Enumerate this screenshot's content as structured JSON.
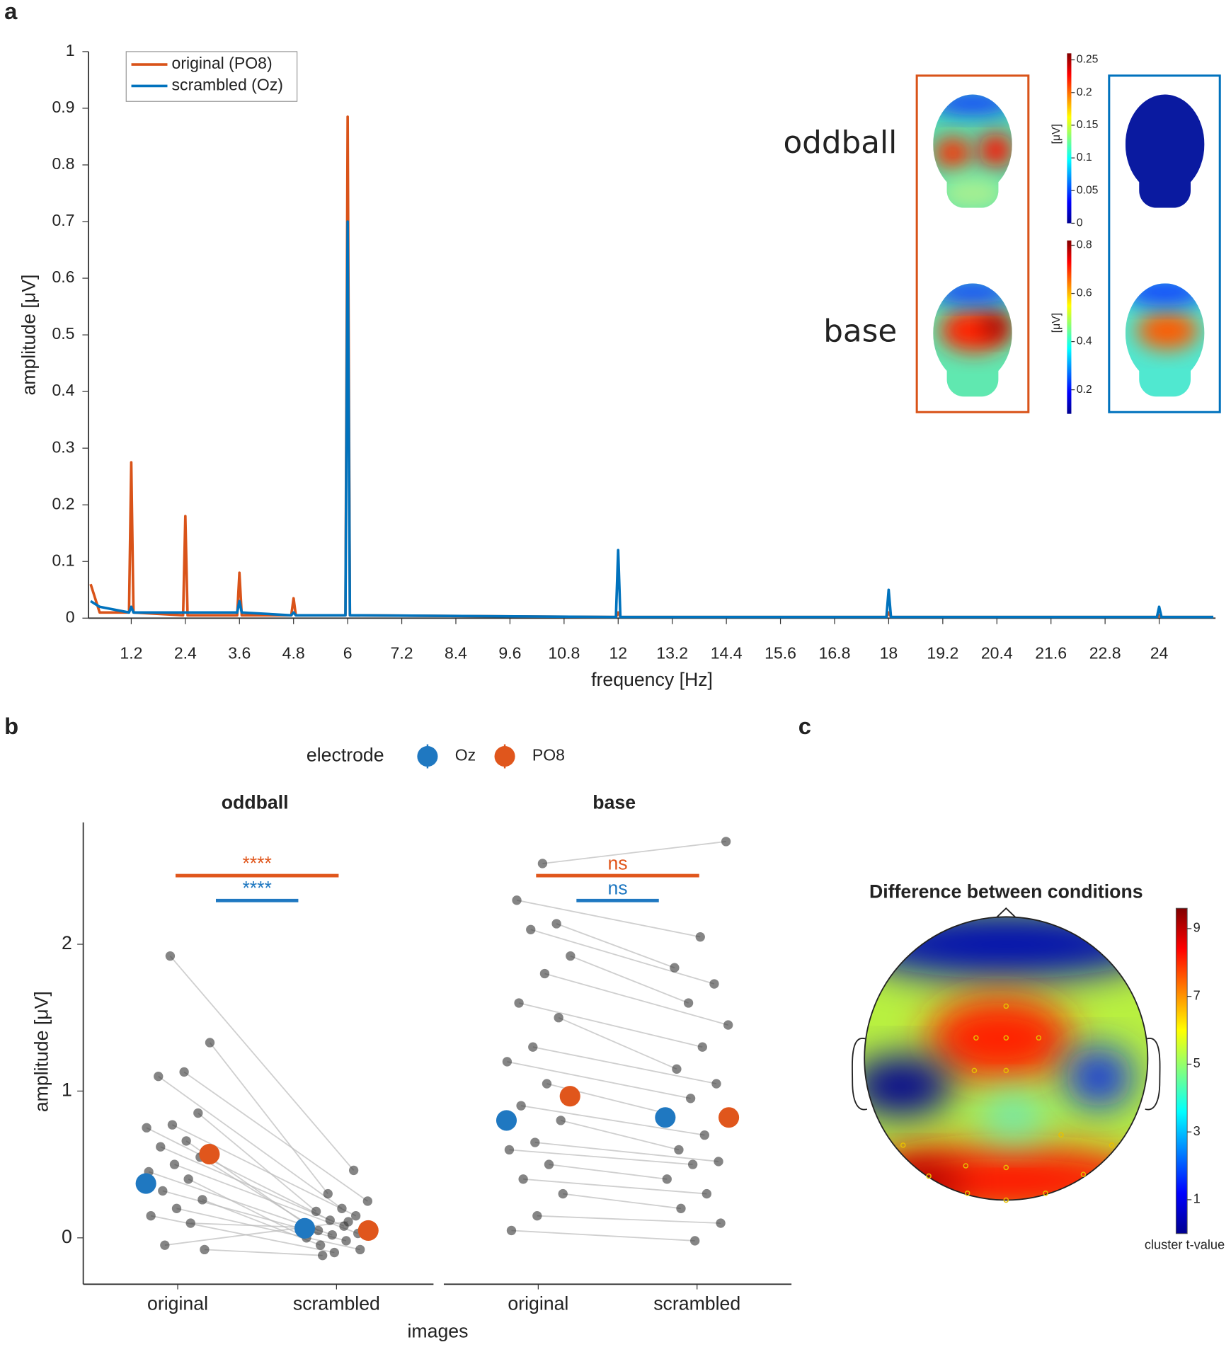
{
  "panel_labels": [
    "a",
    "b",
    "c"
  ],
  "topomaps": {
    "rows": [
      "oddball",
      "base"
    ],
    "colorbars": [
      {
        "label": "[μV]",
        "lim": [
          0,
          0.26
        ],
        "ticks": [
          0,
          0.05,
          0.1,
          0.15,
          0.2,
          0.25
        ]
      },
      {
        "label": "[μV]",
        "lim": [
          0.1,
          0.82
        ],
        "ticks": [
          0.2,
          0.4,
          0.6,
          0.8
        ]
      }
    ]
  },
  "chart_data": [
    {
      "type": "line",
      "xlabel": "frequency [Hz]",
      "ylabel": "amplitude [μV]",
      "legend": "top-left",
      "x": [
        0.3,
        0.5,
        1.15,
        1.2,
        1.25,
        2.35,
        2.4,
        2.45,
        3.55,
        3.6,
        3.65,
        4.75,
        4.8,
        4.85,
        5.95,
        6,
        6.05,
        11.95,
        12,
        12.05,
        17.95,
        18,
        18.05,
        23.95,
        24,
        24.05,
        25.2
      ],
      "series": [
        {
          "name": "original (PO8)",
          "color": "#d95319",
          "values": [
            0.06,
            0.01,
            0.01,
            0.275,
            0.01,
            0.005,
            0.18,
            0.005,
            0.005,
            0.08,
            0.005,
            0.005,
            0.035,
            0.005,
            0.005,
            0.885,
            0.005,
            0.002,
            0.01,
            0.002,
            0.002,
            0.01,
            0.002,
            0.002,
            0.005,
            0.002,
            0.002
          ]
        },
        {
          "name": "scrambled (Oz)",
          "color": "#0072bd",
          "values": [
            0.03,
            0.02,
            0.01,
            0.02,
            0.01,
            0.01,
            0.01,
            0.01,
            0.01,
            0.03,
            0.01,
            0.005,
            0.01,
            0.005,
            0.005,
            0.7,
            0.005,
            0.002,
            0.12,
            0.002,
            0.002,
            0.05,
            0.002,
            0.002,
            0.02,
            0.002,
            0.002
          ]
        }
      ],
      "xlim": [
        0.25,
        25.25
      ],
      "xticks": [
        1.2,
        2.4,
        3.6,
        4.8,
        6,
        7.2,
        8.4,
        9.6,
        10.8,
        12,
        13.2,
        14.4,
        15.6,
        16.8,
        18,
        19.2,
        20.4,
        21.6,
        22.8,
        24
      ],
      "ylim": [
        0,
        1
      ],
      "yticks": [
        0,
        0.1,
        0.2,
        0.3,
        0.4,
        0.5,
        0.6,
        0.7,
        0.8,
        0.9,
        1
      ]
    },
    {
      "type": "dot",
      "legend_title": "electrode",
      "xlabel": "images",
      "ylabel": "amplitude [μV]",
      "categories": [
        "original",
        "scrambled"
      ],
      "ylim": [
        -0.316,
        2.83
      ],
      "yticks": [
        0,
        1,
        2
      ],
      "series": [
        {
          "name": "Oz",
          "color": "#1f78c1"
        },
        {
          "name": "PO8",
          "color": "#e0561c"
        }
      ],
      "facets": [
        {
          "title": "oddball",
          "means": [
            [
              0.37,
              0.065
            ],
            [
              0.57,
              0.05
            ]
          ],
          "significance": [
            "****",
            "****"
          ],
          "subjects": [
            [
              1.92,
              1.33,
              1.13,
              1.1,
              0.85,
              0.77,
              0.75,
              0.66,
              0.62,
              0.55,
              0.5,
              0.45,
              0.4,
              0.32,
              0.26,
              0.2,
              0.15,
              0.1,
              -0.05,
              -0.08
            ],
            [
              0.46,
              0.3,
              0.25,
              0.2,
              0.18,
              0.15,
              0.12,
              0.1,
              0.08,
              0.05,
              0.03,
              0.02,
              0.0,
              -0.02,
              -0.05,
              -0.08,
              -0.1,
              0.07,
              0.11,
              -0.12
            ]
          ]
        },
        {
          "title": "base",
          "means": [
            [
              0.8,
              0.82
            ],
            [
              0.965,
              0.82
            ]
          ],
          "significance": [
            "ns",
            "ns"
          ],
          "subjects": [
            [
              2.55,
              2.3,
              2.14,
              2.1,
              1.92,
              1.8,
              1.6,
              1.5,
              1.3,
              1.2,
              1.05,
              0.9,
              0.8,
              0.65,
              0.6,
              0.5,
              0.4,
              0.3,
              0.15,
              0.05
            ],
            [
              2.7,
              2.05,
              1.84,
              1.73,
              1.6,
              1.45,
              1.3,
              1.15,
              1.05,
              0.95,
              0.85,
              0.7,
              0.6,
              0.52,
              0.5,
              0.4,
              0.3,
              0.2,
              0.1,
              -0.02
            ]
          ]
        }
      ]
    },
    {
      "type": "topomap",
      "title": "Difference between conditions",
      "colorbar_label": "cluster t-value",
      "clim": [
        0,
        9.6
      ],
      "cticks": [
        1,
        3,
        5,
        7,
        9
      ]
    }
  ]
}
